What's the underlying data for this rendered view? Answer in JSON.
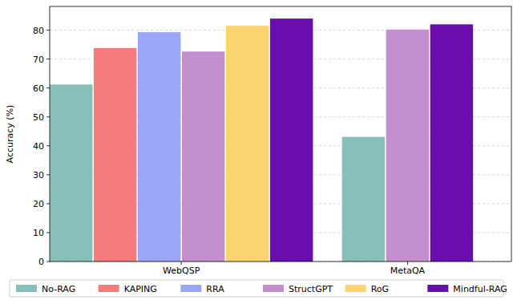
{
  "chart_data": {
    "type": "bar",
    "y_label": "Accuracy (%)",
    "categories": [
      "WebQSP",
      "MetaQA"
    ],
    "series": [
      {
        "name": "No-RAG",
        "color": "#88bfba",
        "values": [
          61.2,
          43.1
        ]
      },
      {
        "name": "KAPING",
        "color": "#f47c7c",
        "values": [
          73.8,
          null
        ]
      },
      {
        "name": "RRA",
        "color": "#9aa7f7",
        "values": [
          79.3,
          null
        ]
      },
      {
        "name": "StructGPT",
        "color": "#c48fce",
        "values": [
          72.6,
          80.2
        ]
      },
      {
        "name": "RoG",
        "color": "#fad46e",
        "values": [
          81.5,
          null
        ]
      },
      {
        "name": "Mindful-RAG",
        "color": "#6a0dad",
        "values": [
          84.0,
          82.0
        ]
      }
    ],
    "ylim": [
      0,
      88.2
    ],
    "yticks": [
      0,
      10,
      20,
      30,
      40,
      50,
      60,
      70,
      80
    ],
    "grid": true,
    "legend": "bottom"
  }
}
